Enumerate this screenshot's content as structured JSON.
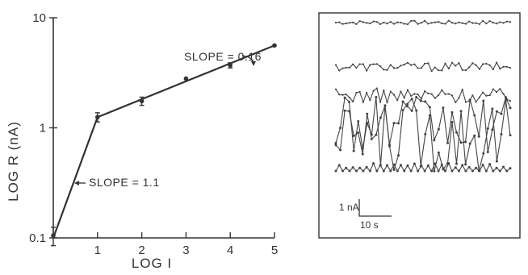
{
  "chart_data": [
    {
      "type": "line",
      "title": "",
      "xlabel": "LOG I",
      "ylabel": "LOG R (nA)",
      "x_scale": "linear",
      "y_scale": "log",
      "xlim": [
        0,
        5
      ],
      "ylim": [
        0.1,
        10
      ],
      "x_ticks": [
        "1",
        "2",
        "3",
        "4",
        "5"
      ],
      "y_ticks": [
        "0.1",
        "1",
        "10"
      ],
      "series": [
        {
          "x": [
            0,
            1,
            2,
            3,
            4,
            5
          ],
          "y": [
            0.105,
            1.25,
            1.75,
            2.8,
            3.7,
            5.6
          ],
          "error": [
            0.02,
            0.12,
            0.15,
            0,
            0.2,
            0
          ]
        }
      ],
      "fit_lines": [
        {
          "x": [
            0,
            1
          ],
          "y": [
            0.1,
            1.25
          ]
        },
        {
          "x": [
            1,
            5
          ],
          "y": [
            1.25,
            5.6
          ]
        }
      ],
      "annotations": [
        "SLOPE = 0.16",
        "SLOPE = 1.1"
      ],
      "grid": false,
      "legend": "none"
    },
    {
      "type": "line",
      "title": "",
      "x_unit": "s",
      "y_unit": "nA",
      "scale_bar": {
        "y_label": "1 nA",
        "x_label": "10 s"
      },
      "series": [
        {
          "baseline_nA": 6.4,
          "noise_amplitude_nA": 0.08,
          "samples": 52
        },
        {
          "baseline_nA": 4.55,
          "noise_amplitude_nA": 0.18,
          "samples": 52
        },
        {
          "baseline_nA": 3.35,
          "noise_amplitude_nA": 0.3,
          "samples": 52
        },
        {
          "baseline_nA": 2.1,
          "noise_amplitude_nA": 1.2,
          "samples": 40
        },
        {
          "baseline_nA": 1.75,
          "noise_amplitude_nA": 1.6,
          "samples": 40
        },
        {
          "baseline_nA": 0.2,
          "noise_amplitude_nA": 0.22,
          "samples": 52
        }
      ],
      "grid": false,
      "legend": "none"
    }
  ],
  "left": {
    "ylabel": "LOG R (nA)",
    "xlabel": "LOG I",
    "y_ticks": [
      "0.1",
      "1",
      "10"
    ],
    "x_ticks": [
      "1",
      "2",
      "3",
      "4",
      "5"
    ],
    "slope_upper": "SLOPE = 0.16",
    "slope_lower": "SLOPE = 1.1"
  },
  "right": {
    "scale_y_label": "1 nA",
    "scale_x_label": "10 s"
  }
}
